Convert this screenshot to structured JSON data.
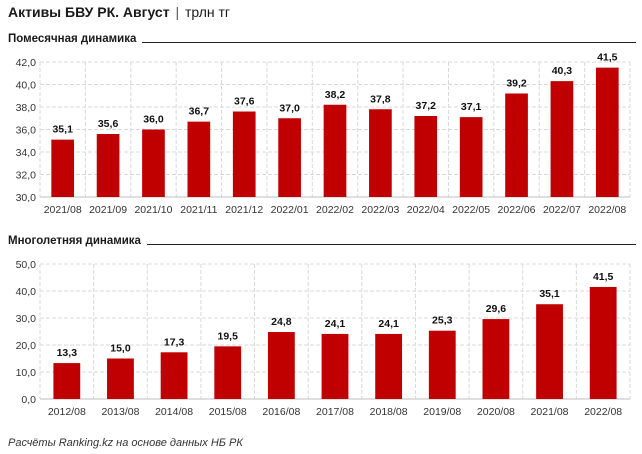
{
  "header": {
    "title_bold": "Активы БВУ РК. Август",
    "separator": "|",
    "title_unit": "трлн тг"
  },
  "footer": {
    "source": "Расчёты Ranking.kz на основе данных НБ РК"
  },
  "colors": {
    "bar": "#c00000",
    "grid": "#d9d9d9",
    "axis": "#bfbfbf"
  },
  "chart_data": [
    {
      "type": "bar",
      "title": "Помесячная динамика",
      "categories": [
        "2021/08",
        "2021/09",
        "2021/10",
        "2021/11",
        "2021/12",
        "2022/01",
        "2022/02",
        "2022/03",
        "2022/04",
        "2022/05",
        "2022/06",
        "2022/07",
        "2022/08"
      ],
      "values": [
        35.1,
        35.6,
        36.0,
        36.7,
        37.6,
        37.0,
        38.2,
        37.8,
        37.2,
        37.1,
        39.2,
        40.3,
        41.5
      ],
      "ylim": [
        30,
        42
      ],
      "yticks": [
        30,
        32,
        34,
        36,
        38,
        40,
        42
      ],
      "grid": true
    },
    {
      "type": "bar",
      "title": "Многолетняя динамика",
      "categories": [
        "2012/08",
        "2013/08",
        "2014/08",
        "2015/08",
        "2016/08",
        "2017/08",
        "2018/08",
        "2019/08",
        "2020/08",
        "2021/08",
        "2022/08"
      ],
      "values": [
        13.3,
        15.0,
        17.3,
        19.5,
        24.8,
        24.1,
        24.1,
        25.3,
        29.6,
        35.1,
        41.5
      ],
      "ylim": [
        0,
        50
      ],
      "yticks": [
        0,
        10,
        20,
        30,
        40,
        50
      ],
      "grid": true
    }
  ]
}
